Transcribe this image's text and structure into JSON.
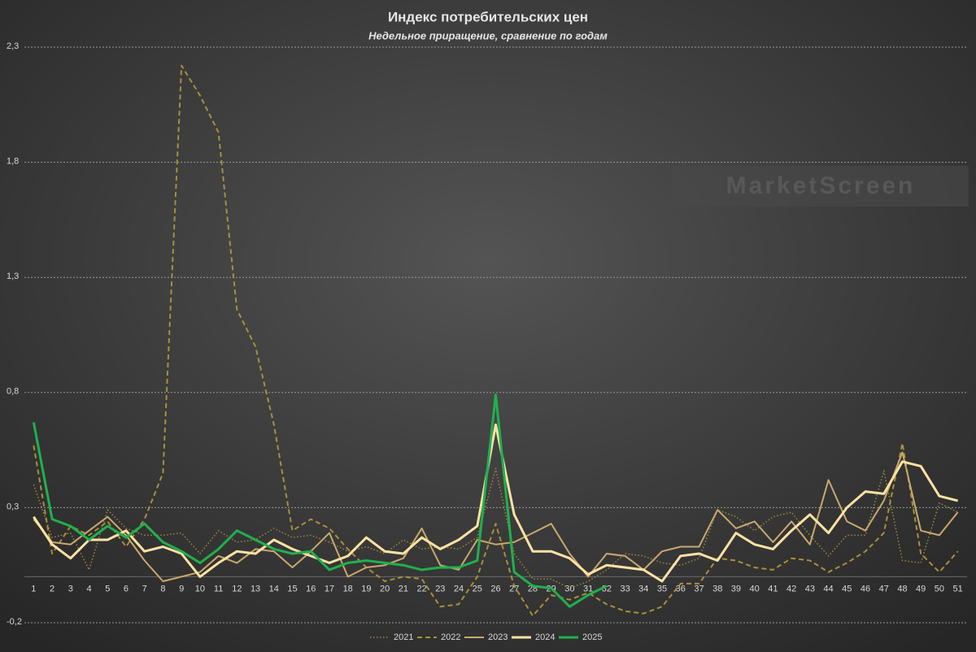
{
  "chart_data": {
    "type": "line",
    "title": "Индекс потребительских цен",
    "subtitle": "Недельное приращение, сравнение по годам",
    "watermark": "MarketScreen",
    "categories": [
      "1",
      "2",
      "3",
      "4",
      "5",
      "6",
      "7",
      "8",
      "9",
      "10",
      "11",
      "12",
      "13",
      "14",
      "15",
      "16",
      "17",
      "18",
      "19",
      "20",
      "21",
      "22",
      "23",
      "24",
      "25",
      "26",
      "27",
      "28",
      "29",
      "30",
      "31",
      "32",
      "33",
      "34",
      "35",
      "36",
      "37",
      "38",
      "39",
      "40",
      "41",
      "42",
      "43",
      "44",
      "45",
      "46",
      "47",
      "48",
      "49",
      "50",
      "51"
    ],
    "ylim": [
      -0.2,
      2.3
    ],
    "yticks": [
      {
        "value": -0.2,
        "label": "-0,2"
      },
      {
        "value": 0.3,
        "label": "0,3"
      },
      {
        "value": 0.8,
        "label": "0,8"
      },
      {
        "value": 1.3,
        "label": "1,3"
      },
      {
        "value": 1.8,
        "label": "1,8"
      },
      {
        "value": 2.3,
        "label": "2,3"
      }
    ],
    "grid": true,
    "legend": "bottom",
    "series": [
      {
        "name": "2021",
        "color": "#a08a3c",
        "dash": "dotted",
        "width": 1.5,
        "values": [
          0.4,
          0.17,
          0.19,
          0.03,
          0.29,
          0.21,
          0.18,
          0.18,
          0.19,
          0.1,
          0.2,
          0.15,
          0.16,
          0.21,
          0.17,
          0.18,
          0.15,
          0.11,
          0.13,
          0.1,
          0.16,
          0.12,
          0.13,
          0.12,
          0.17,
          0.47,
          0.1,
          -0.01,
          -0.01,
          -0.05,
          -0.02,
          0.03,
          0.1,
          0.09,
          0.06,
          0.05,
          0.08,
          0.29,
          0.26,
          0.2,
          0.26,
          0.28,
          0.18,
          0.09,
          0.18,
          0.18,
          0.46,
          0.07,
          0.06,
          0.32,
          0.28
        ]
      },
      {
        "name": "2022",
        "color": "#a8903c",
        "dash": "dashed",
        "width": 2,
        "values": [
          0.57,
          0.1,
          0.22,
          0.18,
          0.24,
          0.13,
          0.25,
          0.45,
          2.22,
          2.09,
          1.93,
          1.16,
          1.0,
          0.66,
          0.2,
          0.25,
          0.21,
          0.12,
          0.04,
          -0.02,
          0.0,
          -0.01,
          -0.13,
          -0.12,
          0.0,
          0.23,
          -0.04,
          -0.17,
          -0.08,
          -0.1,
          -0.07,
          -0.12,
          -0.15,
          -0.16,
          -0.13,
          -0.03,
          -0.03,
          0.08,
          0.07,
          0.04,
          0.03,
          0.08,
          0.07,
          0.02,
          0.06,
          0.11,
          0.19,
          0.58,
          0.1,
          0.02,
          0.11
        ]
      },
      {
        "name": "2023",
        "color": "#c9a96e",
        "dash": "solid",
        "width": 2,
        "values": [
          0.25,
          0.15,
          0.14,
          0.2,
          0.26,
          0.18,
          0.07,
          -0.02,
          0.0,
          0.02,
          0.09,
          0.06,
          0.12,
          0.11,
          0.04,
          0.11,
          0.19,
          0.0,
          0.04,
          0.05,
          0.08,
          0.21,
          0.05,
          0.03,
          0.16,
          0.14,
          0.15,
          0.19,
          0.23,
          0.1,
          0.0,
          0.1,
          0.09,
          0.03,
          0.11,
          0.13,
          0.13,
          0.29,
          0.21,
          0.24,
          0.15,
          0.24,
          0.14,
          0.42,
          0.24,
          0.2,
          0.33,
          0.54,
          0.2,
          0.18,
          0.28
        ]
      },
      {
        "name": "2024",
        "color": "#ffe2a4",
        "dash": "solid",
        "width": 3,
        "values": [
          0.26,
          0.14,
          0.08,
          0.16,
          0.16,
          0.2,
          0.11,
          0.13,
          0.1,
          0.0,
          0.06,
          0.11,
          0.1,
          0.16,
          0.12,
          0.09,
          0.06,
          0.09,
          0.17,
          0.11,
          0.1,
          0.17,
          0.12,
          0.16,
          0.22,
          0.66,
          0.27,
          0.11,
          0.11,
          0.08,
          0.01,
          0.05,
          0.04,
          0.03,
          -0.02,
          0.09,
          0.1,
          0.07,
          0.19,
          0.14,
          0.12,
          0.2,
          0.27,
          0.19,
          0.3,
          0.37,
          0.36,
          0.5,
          0.48,
          0.35,
          0.33
        ]
      },
      {
        "name": "2025",
        "color": "#1fb14d",
        "dash": "solid",
        "width": 3,
        "values": [
          0.67,
          0.25,
          0.22,
          0.16,
          0.22,
          0.17,
          0.23,
          0.15,
          0.11,
          0.06,
          0.12,
          0.2,
          0.16,
          0.12,
          0.1,
          0.11,
          0.03,
          0.06,
          0.07,
          0.06,
          0.05,
          0.03,
          0.04,
          0.04,
          0.07,
          0.79,
          0.02,
          -0.04,
          -0.05,
          -0.13,
          -0.08,
          -0.04,
          null,
          null,
          null,
          null,
          null,
          null,
          null,
          null,
          null,
          null,
          null,
          null,
          null,
          null,
          null,
          null,
          null,
          null,
          null
        ]
      }
    ]
  }
}
